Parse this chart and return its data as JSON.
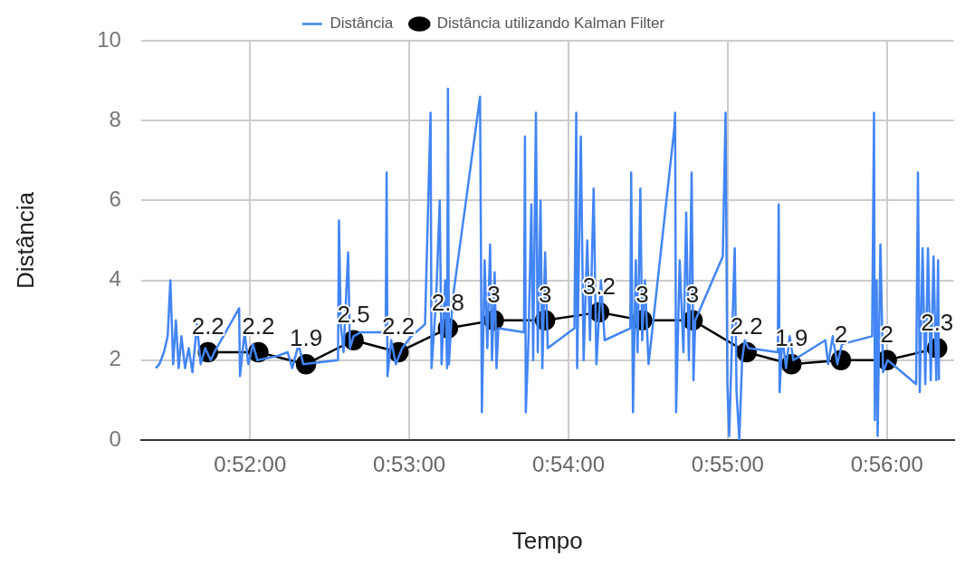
{
  "chart_data": {
    "type": "line",
    "xlabel": "Tempo",
    "ylabel": "Distância",
    "legend": "top",
    "grid": true,
    "xlim": [
      0.85526,
      0.94032
    ],
    "xticks": [
      {
        "value": 0.866667,
        "label": "0:52:00"
      },
      {
        "value": 0.883333,
        "label": "0:53:00"
      },
      {
        "value": 0.9,
        "label": "0:54:00"
      },
      {
        "value": 0.916667,
        "label": "0:55:00"
      },
      {
        "value": 0.933333,
        "label": "0:56:00"
      }
    ],
    "ylim": [
      0,
      10
    ],
    "yticks": [
      0,
      2,
      4,
      6,
      8,
      10
    ],
    "series": [
      {
        "name": "Distância",
        "color": "#4285f4",
        "marker": "none",
        "x": [
          0.85679,
          0.85717,
          0.85765,
          0.85804,
          0.85832,
          0.85861,
          0.8589,
          0.85919,
          0.85948,
          0.85986,
          0.86024,
          0.86063,
          0.86111,
          0.86149,
          0.86197,
          0.86254,
          0.86293,
          0.86552,
          0.86561,
          0.86609,
          0.86648,
          0.86696,
          0.86743,
          0.86945,
          0.8706,
          0.87108,
          0.87175,
          0.87223,
          0.87587,
          0.87597,
          0.87616,
          0.87645,
          0.87693,
          0.87712,
          0.8775,
          0.87827,
          0.88086,
          0.88096,
          0.88105,
          0.88144,
          0.88192,
          0.88259,
          0.88355,
          0.88498,
          0.88556,
          0.88566,
          0.88614,
          0.88652,
          0.88671,
          0.88709,
          0.88729,
          0.88738,
          0.88748,
          0.88786,
          0.89074,
          0.89093,
          0.89122,
          0.8915,
          0.89179,
          0.89199,
          0.89227,
          0.89246,
          0.89266,
          0.89534,
          0.89544,
          0.89553,
          0.89582,
          0.89611,
          0.8963,
          0.89659,
          0.89678,
          0.89707,
          0.89726,
          0.89755,
          0.89783,
          0.90062,
          0.90081,
          0.9009,
          0.90129,
          0.90158,
          0.90196,
          0.90225,
          0.90263,
          0.90292,
          0.9034,
          0.90378,
          0.90647,
          0.90656,
          0.90675,
          0.90704,
          0.90723,
          0.90752,
          0.90771,
          0.908,
          0.90838,
          0.91107,
          0.91116,
          0.91126,
          0.91164,
          0.91203,
          0.91232,
          0.9126,
          0.91289,
          0.91308,
          0.91327,
          0.91615,
          0.91644,
          0.91663,
          0.91682,
          0.91711,
          0.9174,
          0.91759,
          0.91788,
          0.91817,
          0.91845,
          0.91884,
          0.92191,
          0.922,
          0.9221,
          0.92238,
          0.92277,
          0.92315,
          0.92354,
          0.92689,
          0.92718,
          0.92766,
          0.92814,
          0.92862,
          0.93178,
          0.93198,
          0.93207,
          0.93226,
          0.93236,
          0.93265,
          0.93293,
          0.93341,
          0.93639,
          0.93658,
          0.93677,
          0.93706,
          0.93735,
          0.93763,
          0.93792,
          0.93821,
          0.9385,
          0.93869,
          0.93878
        ],
        "values": [
          1.8,
          1.9,
          2.2,
          2.6,
          4.0,
          1.9,
          3.0,
          1.8,
          2.6,
          1.8,
          2.3,
          1.7,
          2.9,
          1.9,
          2.3,
          2.0,
          2.2,
          3.3,
          1.6,
          2.7,
          1.9,
          2.4,
          2.0,
          2.1,
          2.2,
          1.8,
          2.4,
          1.9,
          2.0,
          5.5,
          2.9,
          2.2,
          4.7,
          2.3,
          2.6,
          2.7,
          2.7,
          6.7,
          1.6,
          2.5,
          1.9,
          2.3,
          2.6,
          2.9,
          8.2,
          1.8,
          3.5,
          6.0,
          1.9,
          4.0,
          1.8,
          8.8,
          1.9,
          3.5,
          8.6,
          0.7,
          4.5,
          2.3,
          4.9,
          2.0,
          4.2,
          1.8,
          2.8,
          2.7,
          7.6,
          0.7,
          2.6,
          5.9,
          2.0,
          8.2,
          2.2,
          6.0,
          1.8,
          4.7,
          2.3,
          2.8,
          8.2,
          1.8,
          7.6,
          2.0,
          5.0,
          2.5,
          6.3,
          1.9,
          4.0,
          2.5,
          2.8,
          6.7,
          0.7,
          4.5,
          2.2,
          6.3,
          2.5,
          4.0,
          1.9,
          7.8,
          8.2,
          0.7,
          4.5,
          2.2,
          5.7,
          2.0,
          6.7,
          1.5,
          3.0,
          4.6,
          8.2,
          1.4,
          0.1,
          2.5,
          4.8,
          1.2,
          0.0,
          2.0,
          2.5,
          2.3,
          2.2,
          5.9,
          1.2,
          2.6,
          1.8,
          2.6,
          2.0,
          2.5,
          1.9,
          2.6,
          1.9,
          2.4,
          2.6,
          8.2,
          0.5,
          4.0,
          0.1,
          4.9,
          1.7,
          2.0,
          1.4,
          6.7,
          1.2,
          4.8,
          1.4,
          4.8,
          1.5,
          4.6,
          1.5,
          4.5,
          1.5
        ]
      },
      {
        "name": "Distância utilizando Kalman Filter",
        "color": "#000000",
        "marker": "circle",
        "x": [
          0.86226,
          0.86753,
          0.87252,
          0.8775,
          0.8822,
          0.88738,
          0.89218,
          0.89755,
          0.90321,
          0.90771,
          0.91299,
          0.91864,
          0.92334,
          0.92852,
          0.93332,
          0.93859
        ],
        "values": [
          2.2,
          2.2,
          1.9,
          2.5,
          2.2,
          2.8,
          3,
          3,
          3.2,
          3,
          3,
          2.2,
          1.9,
          2,
          2,
          2.3
        ],
        "value_labels": [
          "2.2",
          "2.2",
          "1.9",
          "2.5",
          "2.2",
          "2.8",
          "3",
          "3",
          "3.2",
          "3",
          "3",
          "2.2",
          "1.9",
          "2",
          "2",
          "2.3"
        ]
      }
    ]
  }
}
